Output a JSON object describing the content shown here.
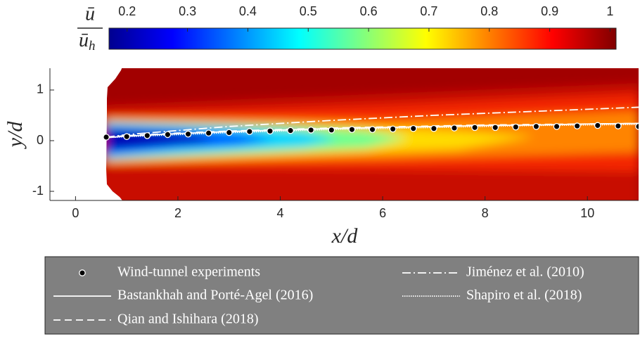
{
  "chart_data": {
    "type": "line",
    "xlabel": "x/d",
    "ylabel": "y/d",
    "xlim": [
      -0.5,
      11
    ],
    "ylim": [
      -1.18,
      1.43
    ],
    "xticks": [
      0,
      2,
      4,
      6,
      8,
      10
    ],
    "yticks": [
      -1,
      0,
      1
    ],
    "legend": "below",
    "colorbar": {
      "label_numerator": "ū",
      "label_denominator": "ū",
      "label_subscript": "h",
      "colormap": "jet",
      "clim": [
        0.17,
        1.01
      ],
      "ticks": [
        0.2,
        0.3,
        0.4,
        0.5,
        0.6,
        0.7,
        0.8,
        0.9,
        1
      ]
    },
    "series": [
      {
        "name": "Wind-tunnel experiments",
        "style": "markers",
        "color": "#000000",
        "x": [
          0.6,
          1.0,
          1.4,
          1.8,
          2.2,
          2.6,
          3.0,
          3.4,
          3.8,
          4.2,
          4.6,
          5.0,
          5.4,
          5.8,
          6.2,
          6.6,
          7.0,
          7.4,
          7.8,
          8.2,
          8.6,
          9.0,
          9.4,
          9.8,
          10.2,
          10.6,
          11.0
        ],
        "values": [
          0.07,
          0.08,
          0.1,
          0.12,
          0.13,
          0.15,
          0.16,
          0.18,
          0.19,
          0.2,
          0.21,
          0.21,
          0.22,
          0.22,
          0.23,
          0.24,
          0.24,
          0.25,
          0.26,
          0.26,
          0.27,
          0.28,
          0.28,
          0.29,
          0.3,
          0.29,
          0.28
        ]
      },
      {
        "name": "Bastankhah and Porté-Agel (2016)",
        "style": "solid",
        "color": "#ffffff",
        "x": [
          0.6,
          1,
          2,
          3,
          4,
          5,
          6,
          7,
          8,
          9,
          10,
          11
        ],
        "values": [
          0.06,
          0.09,
          0.14,
          0.18,
          0.21,
          0.24,
          0.26,
          0.28,
          0.3,
          0.31,
          0.33,
          0.34
        ]
      },
      {
        "name": "Qian and Ishihara (2018)",
        "style": "dashed",
        "color": "#ffffff",
        "x": [
          0.6,
          1,
          2,
          3,
          4,
          5,
          6,
          7,
          8,
          9,
          10,
          11
        ],
        "values": [
          0.07,
          0.1,
          0.15,
          0.19,
          0.22,
          0.25,
          0.27,
          0.29,
          0.31,
          0.32,
          0.33,
          0.34
        ]
      },
      {
        "name": "Jiménez et al. (2010)",
        "style": "dashdot",
        "color": "#ffffff",
        "x": [
          0.6,
          1,
          2,
          3,
          4,
          5,
          6,
          7,
          8,
          9,
          10,
          11
        ],
        "values": [
          0.07,
          0.12,
          0.2,
          0.28,
          0.34,
          0.4,
          0.45,
          0.5,
          0.54,
          0.58,
          0.62,
          0.66
        ]
      },
      {
        "name": "Shapiro et al. (2018)",
        "style": "dotted",
        "color": "#ffffff",
        "x": [
          0.6,
          1,
          2,
          3,
          4,
          5,
          6,
          7,
          8,
          9,
          10,
          11
        ],
        "values": [
          0.06,
          0.08,
          0.12,
          0.16,
          0.19,
          0.22,
          0.24,
          0.26,
          0.28,
          0.3,
          0.31,
          0.32
        ]
      }
    ]
  }
}
